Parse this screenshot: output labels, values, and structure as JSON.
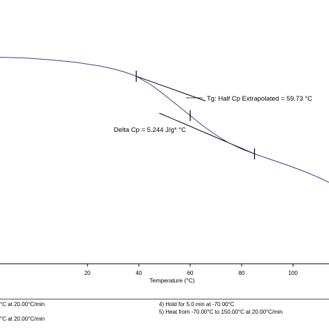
{
  "chart_data": {
    "type": "line",
    "xlabel": "Temperature (°C)",
    "xlim": [
      -14,
      114
    ],
    "x_ticks": [
      20,
      40,
      60,
      80,
      100
    ],
    "ylim": [
      -1.7,
      0.3
    ],
    "series": [
      {
        "x": [
          -14,
          -5,
          5,
          15,
          25,
          30,
          35,
          39,
          45,
          50,
          55,
          60,
          65,
          70,
          75,
          80,
          85,
          90,
          95,
          100,
          105,
          110,
          114
        ],
        "y": [
          0.0,
          -0.005,
          -0.02,
          -0.04,
          -0.072,
          -0.095,
          -0.125,
          -0.156,
          -0.23,
          -0.31,
          -0.395,
          -0.48,
          -0.565,
          -0.64,
          -0.705,
          -0.755,
          -0.795,
          -0.832,
          -0.868,
          -0.905,
          -0.945,
          -0.99,
          -1.03
        ],
        "color": "#3a3a8c"
      }
    ],
    "tangent_lines": [
      {
        "x": [
          39,
          66
        ],
        "y": [
          -0.156,
          -0.36
        ]
      },
      {
        "x": [
          48,
          85
        ],
        "y": [
          -0.46,
          -0.795
        ]
      }
    ],
    "markers_x": [
      39,
      60,
      85
    ],
    "annotations": {
      "tg": "Tg: Half Cp Extrapolated = 59.73 °C",
      "delta_cp": "Delta Cp = 5.244 J/g* °C"
    },
    "method_steps": [
      {
        "text": "°C at 20.00°C/min"
      },
      {
        "text": "°C at 20.00°C/min"
      },
      {
        "text": "4)    Hold for 5.0 min at -70.00°C"
      },
      {
        "text": "5)    Heat from -70.00°C to 150.00°C at 20.00°C/min"
      }
    ]
  }
}
